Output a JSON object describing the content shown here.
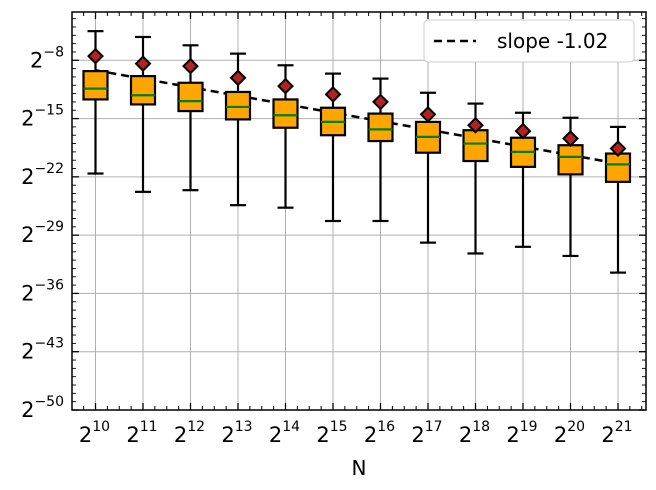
{
  "chart_data": {
    "type": "box",
    "xlabel": "N",
    "ylabel": "",
    "x_scale": "log2",
    "y_scale": "log2",
    "grid": true,
    "legend_position": "top-right",
    "categories": [
      "2^10",
      "2^11",
      "2^12",
      "2^13",
      "2^14",
      "2^15",
      "2^16",
      "2^17",
      "2^18",
      "2^19",
      "2^20",
      "2^21"
    ],
    "x_exponents": [
      10,
      11,
      12,
      13,
      14,
      15,
      16,
      17,
      18,
      19,
      20,
      21
    ],
    "y_ticks": {
      "exponents": [
        -8,
        -15,
        -22,
        -29,
        -36,
        -43,
        -50
      ],
      "labels": [
        "2^-8",
        "2^-15",
        "2^-22",
        "2^-29",
        "2^-36",
        "2^-43",
        "2^-50"
      ]
    },
    "x_lim": [
      9.5,
      21.5
    ],
    "y_lim_log2": [
      -50,
      -2.2
    ],
    "boxes": [
      {
        "n_log2": 10,
        "whisker_low": -21.6,
        "q1": -12.7,
        "median": -11.4,
        "q3": -9.3,
        "whisker_high": -4.5,
        "mean": -7.5
      },
      {
        "n_log2": 11,
        "whisker_low": -23.8,
        "q1": -13.3,
        "median": -12.2,
        "q3": -9.9,
        "whisker_high": -5.2,
        "mean": -8.4
      },
      {
        "n_log2": 12,
        "whisker_low": -23.6,
        "q1": -14.1,
        "median": -12.9,
        "q3": -10.7,
        "whisker_high": -6.2,
        "mean": -8.7
      },
      {
        "n_log2": 13,
        "whisker_low": -25.4,
        "q1": -15.1,
        "median": -13.6,
        "q3": -11.8,
        "whisker_high": -7.2,
        "mean": -10.1
      },
      {
        "n_log2": 14,
        "whisker_low": -25.7,
        "q1": -16.1,
        "median": -14.6,
        "q3": -12.7,
        "whisker_high": -8.6,
        "mean": -11.1
      },
      {
        "n_log2": 15,
        "whisker_low": -27.3,
        "q1": -17.0,
        "median": -15.4,
        "q3": -13.7,
        "whisker_high": -9.6,
        "mean": -12.1
      },
      {
        "n_log2": 16,
        "whisker_low": -27.3,
        "q1": -17.7,
        "median": -16.3,
        "q3": -14.4,
        "whisker_high": -10.2,
        "mean": -13.0
      },
      {
        "n_log2": 17,
        "whisker_low": -29.9,
        "q1": -19.1,
        "median": -17.2,
        "q3": -15.4,
        "whisker_high": -11.9,
        "mean": -14.5
      },
      {
        "n_log2": 18,
        "whisker_low": -31.2,
        "q1": -20.1,
        "median": -18.0,
        "q3": -16.4,
        "whisker_high": -13.2,
        "mean": -15.8
      },
      {
        "n_log2": 19,
        "whisker_low": -30.4,
        "q1": -20.8,
        "median": -19.0,
        "q3": -17.3,
        "whisker_high": -14.3,
        "mean": -16.5
      },
      {
        "n_log2": 20,
        "whisker_low": -31.5,
        "q1": -21.7,
        "median": -19.6,
        "q3": -18.2,
        "whisker_high": -14.9,
        "mean": -17.4
      },
      {
        "n_log2": 21,
        "whisker_low": -33.5,
        "q1": -22.6,
        "median": -20.5,
        "q3": -19.2,
        "whisker_high": -16.0,
        "mean": -18.6
      }
    ],
    "fit_line": {
      "label": "slope -1.02",
      "slope": -1.02,
      "points": [
        [
          10,
          -9.2
        ],
        [
          21,
          -20.4
        ]
      ]
    },
    "colors": {
      "box_fill": "#ffa500",
      "box_edge": "#000000",
      "median": "#008000",
      "mean_marker": "#b22222",
      "fit_line": "#000000",
      "grid": "#b0b0b0"
    }
  }
}
